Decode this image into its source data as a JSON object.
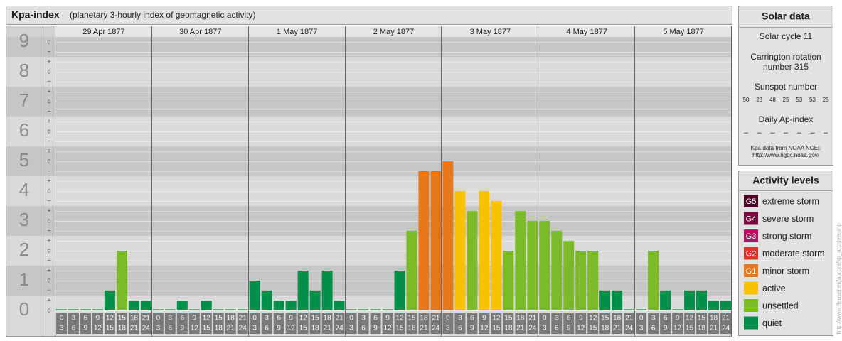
{
  "chart_data": {
    "type": "bar",
    "title": "Kpa-index",
    "subtitle": "(planetary 3-hourly index of geomagnetic activity)",
    "days": [
      "29 Apr 1877",
      "30 Apr 1877",
      "1 May 1877",
      "2 May 1877",
      "3 May 1877",
      "4 May 1877",
      "5 May 1877"
    ],
    "hours": [
      0,
      3,
      6,
      9,
      12,
      15,
      18,
      21,
      24
    ],
    "values": [
      0,
      0,
      0,
      0,
      0.67,
      2,
      0.33,
      0.33,
      0,
      0,
      0.33,
      0,
      0.33,
      0,
      0,
      0,
      1,
      0.67,
      0.33,
      0.33,
      1.33,
      0.67,
      1.33,
      0.33,
      0,
      0,
      0,
      0,
      1.33,
      2.67,
      4.67,
      4.67,
      5,
      4,
      3.33,
      4,
      3.67,
      2,
      3.33,
      3,
      3,
      2.67,
      2.33,
      2,
      2,
      0.67,
      0.67,
      0,
      0,
      2,
      0.67,
      0,
      0.67,
      0.67,
      0.33,
      0.33
    ],
    "colors": [
      "#00904a",
      "#00904a",
      "#00904a",
      "#00904a",
      "#00904a",
      "#7cba2a",
      "#00904a",
      "#00904a",
      "#00904a",
      "#00904a",
      "#00904a",
      "#00904a",
      "#00904a",
      "#00904a",
      "#00904a",
      "#00904a",
      "#00904a",
      "#00904a",
      "#00904a",
      "#00904a",
      "#00904a",
      "#00904a",
      "#00904a",
      "#00904a",
      "#00904a",
      "#00904a",
      "#00904a",
      "#00904a",
      "#00904a",
      "#7cba2a",
      "#e8781c",
      "#e8781c",
      "#e8781c",
      "#f7c300",
      "#7cba2a",
      "#f7c300",
      "#f7c300",
      "#7cba2a",
      "#7cba2a",
      "#7cba2a",
      "#7cba2a",
      "#7cba2a",
      "#7cba2a",
      "#7cba2a",
      "#7cba2a",
      "#00904a",
      "#00904a",
      "#00904a",
      "#00904a",
      "#7cba2a",
      "#00904a",
      "#00904a",
      "#00904a",
      "#00904a",
      "#00904a",
      "#00904a"
    ],
    "ylim": [
      0,
      9.17
    ],
    "yticks": [
      0,
      1,
      2,
      3,
      4,
      5,
      6,
      7,
      8,
      9
    ],
    "yminorticks": [
      {
        "value": 0,
        "label": "o"
      },
      {
        "value": 0.33,
        "label": "+"
      },
      {
        "value": 0.67,
        "label": "−"
      },
      {
        "value": 1,
        "label": "o"
      },
      {
        "value": 1.33,
        "label": "+"
      },
      {
        "value": 1.67,
        "label": "−"
      },
      {
        "value": 2,
        "label": "o"
      },
      {
        "value": 2.33,
        "label": "+"
      },
      {
        "value": 2.67,
        "label": "−"
      },
      {
        "value": 3,
        "label": "o"
      },
      {
        "value": 3.33,
        "label": "+"
      },
      {
        "value": 3.67,
        "label": "−"
      },
      {
        "value": 4,
        "label": "o"
      },
      {
        "value": 4.33,
        "label": "+"
      },
      {
        "value": 4.67,
        "label": "−"
      },
      {
        "value": 5,
        "label": "o"
      },
      {
        "value": 5.33,
        "label": "+"
      },
      {
        "value": 5.67,
        "label": "−"
      },
      {
        "value": 6,
        "label": "o"
      },
      {
        "value": 6.33,
        "label": "+"
      },
      {
        "value": 6.67,
        "label": "−"
      },
      {
        "value": 7,
        "label": "o"
      },
      {
        "value": 7.33,
        "label": "+"
      },
      {
        "value": 7.67,
        "label": "−"
      },
      {
        "value": 8,
        "label": "o"
      },
      {
        "value": 8.33,
        "label": "+"
      },
      {
        "value": 8.67,
        "label": "−"
      },
      {
        "value": 9,
        "label": "o"
      }
    ],
    "grid": true
  },
  "solar_data": {
    "title": "Solar data",
    "solar_cycle": "Solar cycle 11",
    "carrington": [
      "Carrington rotation",
      "number 315"
    ],
    "sunspot_title": "Sunspot number",
    "sunspot_numbers": [
      50,
      23,
      48,
      25,
      53,
      53,
      25
    ],
    "ap_title": "Daily Ap-index",
    "ap_index": [
      "–",
      "–",
      "–",
      "–",
      "–",
      "–",
      "–"
    ],
    "source": [
      "Kpa-data from NOAA NCEI:",
      "http://www.ngdc.noaa.gov/"
    ]
  },
  "activity_levels": {
    "title": "Activity levels",
    "items": [
      {
        "code": "G5",
        "label": "extreme storm",
        "color": "#4a0020"
      },
      {
        "code": "G4",
        "label": "severe storm",
        "color": "#7a0a3e"
      },
      {
        "code": "G3",
        "label": "strong storm",
        "color": "#b0135f"
      },
      {
        "code": "G2",
        "label": "moderate storm",
        "color": "#d9352a"
      },
      {
        "code": "G1",
        "label": "minor storm",
        "color": "#e8781c"
      },
      {
        "label": "active",
        "color": "#f7c300"
      },
      {
        "label": "unsettled",
        "color": "#7cba2a"
      },
      {
        "label": "quiet",
        "color": "#00904a"
      }
    ]
  },
  "credit": "http://www.fleuser.eu/aurora/kp_archive.php"
}
